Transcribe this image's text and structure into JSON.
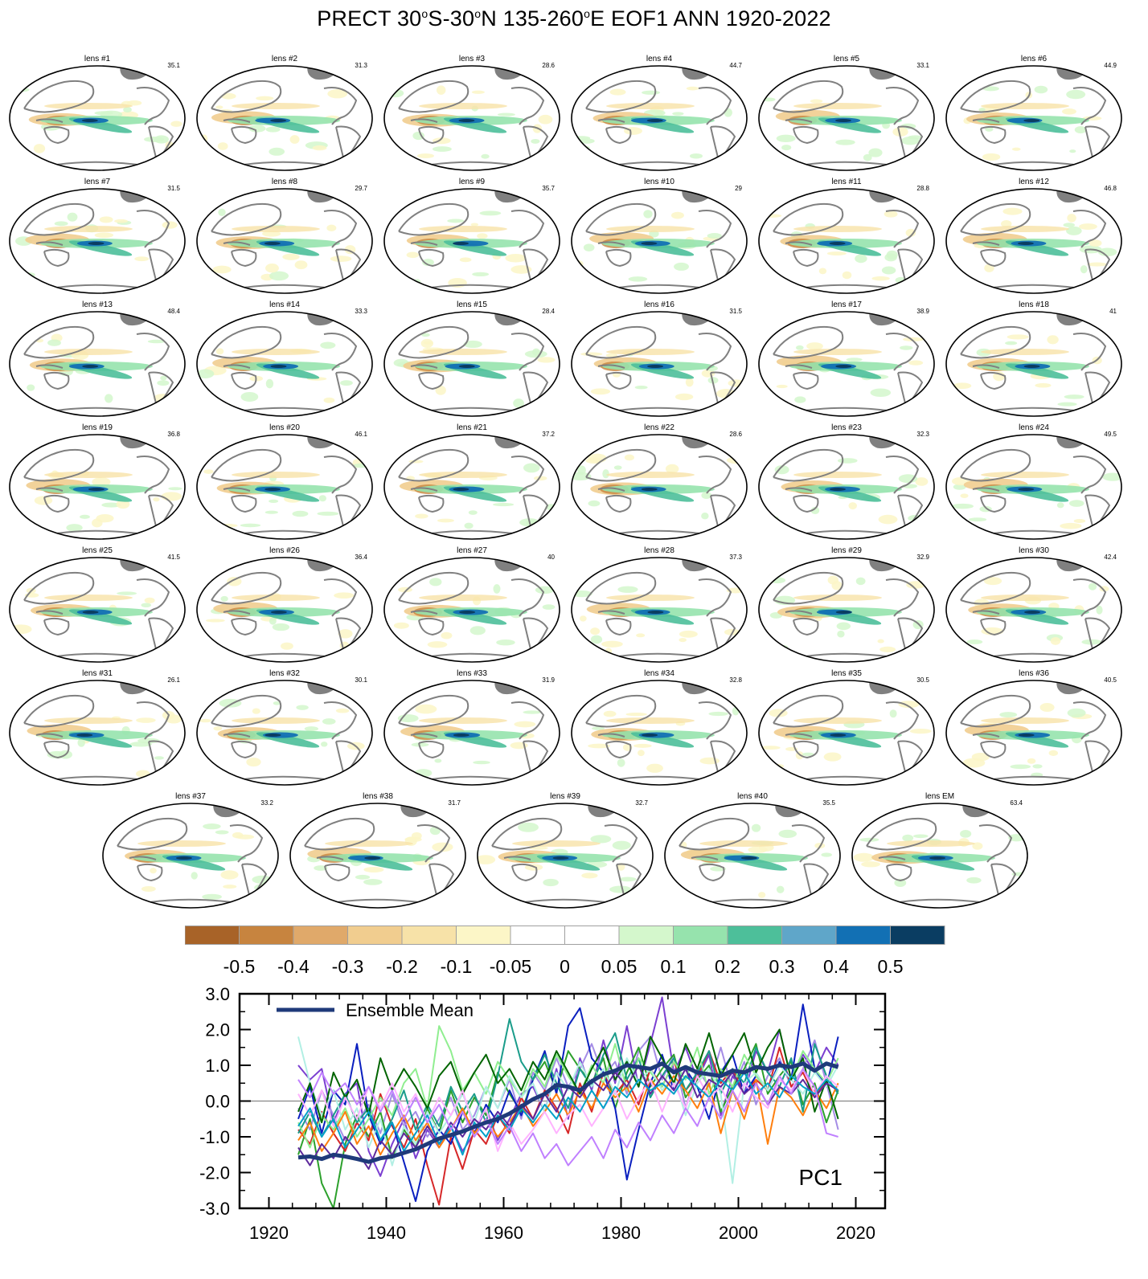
{
  "title": {
    "prefix": "PRECT 30",
    "sup1": "o",
    "mid1": "S-30",
    "sup2": "o",
    "mid2": "N 135-260",
    "sup3": "o",
    "suffix": "E EOF1 ANN 1920-2022"
  },
  "panels": [
    {
      "label": "lens #1",
      "value": "35.1"
    },
    {
      "label": "lens #2",
      "value": "31.3"
    },
    {
      "label": "lens #3",
      "value": "28.6"
    },
    {
      "label": "lens #4",
      "value": "44.7"
    },
    {
      "label": "lens #5",
      "value": "33.1"
    },
    {
      "label": "lens #6",
      "value": "44.9"
    },
    {
      "label": "lens #7",
      "value": "31.5"
    },
    {
      "label": "lens #8",
      "value": "29.7"
    },
    {
      "label": "lens #9",
      "value": "35.7"
    },
    {
      "label": "lens #10",
      "value": "29"
    },
    {
      "label": "lens #11",
      "value": "28.8"
    },
    {
      "label": "lens #12",
      "value": "46.8"
    },
    {
      "label": "lens #13",
      "value": "48.4"
    },
    {
      "label": "lens #14",
      "value": "33.3"
    },
    {
      "label": "lens #15",
      "value": "28.4"
    },
    {
      "label": "lens #16",
      "value": "31.5"
    },
    {
      "label": "lens #17",
      "value": "38.9"
    },
    {
      "label": "lens #18",
      "value": "41"
    },
    {
      "label": "lens #19",
      "value": "36.8"
    },
    {
      "label": "lens #20",
      "value": "46.1"
    },
    {
      "label": "lens #21",
      "value": "37.2"
    },
    {
      "label": "lens #22",
      "value": "28.6"
    },
    {
      "label": "lens #23",
      "value": "32.3"
    },
    {
      "label": "lens #24",
      "value": "49.5"
    },
    {
      "label": "lens #25",
      "value": "41.5"
    },
    {
      "label": "lens #26",
      "value": "36.4"
    },
    {
      "label": "lens #27",
      "value": "40"
    },
    {
      "label": "lens #28",
      "value": "37.3"
    },
    {
      "label": "lens #29",
      "value": "32.9"
    },
    {
      "label": "lens #30",
      "value": "42.4"
    },
    {
      "label": "lens #31",
      "value": "26.1"
    },
    {
      "label": "lens #32",
      "value": "30.1"
    },
    {
      "label": "lens #33",
      "value": "31.9"
    },
    {
      "label": "lens #34",
      "value": "32.8"
    },
    {
      "label": "lens #35",
      "value": "30.5"
    },
    {
      "label": "lens #36",
      "value": "40.5"
    },
    {
      "label": "lens #37",
      "value": "33.2"
    },
    {
      "label": "lens #38",
      "value": "31.7"
    },
    {
      "label": "lens #39",
      "value": "32.7"
    },
    {
      "label": "lens #40",
      "value": "35.5"
    },
    {
      "label": "lens EM",
      "value": "63.4"
    }
  ],
  "colors": {
    "land": "#808080",
    "zero_line": "#888888",
    "ensemble_mean": "#1f3a7a"
  },
  "colorbar": {
    "colors": [
      "#a86328",
      "#c7843f",
      "#e0a96a",
      "#f1cd8f",
      "#f7e2a8",
      "#fcf6c7",
      "#ffffff",
      "#ffffff",
      "#d4f7cc",
      "#96e3ad",
      "#4dbf9a",
      "#5fa6c9",
      "#1270b4",
      "#0a3d62"
    ],
    "labels": [
      "-0.5",
      "-0.4",
      "-0.3",
      "-0.2",
      "-0.1",
      "-0.05",
      "0",
      "0.05",
      "0.1",
      "0.2",
      "0.3",
      "0.4",
      "0.5"
    ]
  },
  "chart_data": {
    "type": "line",
    "title": "",
    "annotation": "PC1",
    "legend": {
      "entries": [
        "Ensemble Mean"
      ],
      "placement": "top-left"
    },
    "xlim": [
      1915,
      2025
    ],
    "ylim": [
      -3.0,
      3.0
    ],
    "xticks": [
      "1920",
      "1940",
      "1960",
      "1980",
      "2000",
      "2020"
    ],
    "yticks": [
      "3.0",
      "2.0",
      "1.0",
      "0.0",
      "-1.0",
      "-2.0",
      "-3.0"
    ],
    "xlabel": "",
    "ylabel": "",
    "grid": false,
    "x": [
      1925,
      1927,
      1929,
      1931,
      1933,
      1935,
      1937,
      1939,
      1941,
      1943,
      1945,
      1947,
      1949,
      1951,
      1953,
      1955,
      1957,
      1959,
      1961,
      1963,
      1965,
      1967,
      1969,
      1971,
      1973,
      1975,
      1977,
      1979,
      1981,
      1983,
      1985,
      1987,
      1989,
      1991,
      1993,
      1995,
      1997,
      1999,
      2001,
      2003,
      2005,
      2007,
      2009,
      2011,
      2013,
      2015,
      2017
    ],
    "series": [
      {
        "name": "Ensemble Mean",
        "color": "#1f3a7a",
        "width": 5,
        "values": [
          -1.58,
          -1.55,
          -1.62,
          -1.5,
          -1.55,
          -1.62,
          -1.7,
          -1.6,
          -1.55,
          -1.45,
          -1.35,
          -1.2,
          -1.05,
          -0.95,
          -0.85,
          -0.72,
          -0.6,
          -0.5,
          -0.35,
          -0.15,
          0.05,
          0.2,
          0.45,
          0.4,
          0.3,
          0.55,
          0.75,
          0.85,
          1.0,
          0.95,
          0.9,
          1.05,
          0.8,
          0.95,
          0.8,
          0.75,
          0.7,
          0.85,
          0.8,
          0.95,
          0.9,
          1.0,
          0.95,
          1.05,
          0.85,
          1.05,
          0.95
        ]
      },
      {
        "color": "#7b3fd1",
        "width": 2,
        "values": [
          1.0,
          0.6,
          0.9,
          -0.6,
          0.2,
          0.5,
          -1.4,
          -2.1,
          -1.2,
          -0.5,
          -1.6,
          -0.8,
          -1.3,
          -0.7,
          -1.4,
          -0.9,
          -0.2,
          -1.1,
          -0.5,
          0.2,
          0.4,
          -0.3,
          0.9,
          -0.5,
          1.2,
          0.3,
          1.7,
          0.5,
          2.1,
          0.4,
          1.6,
          2.9,
          0.8,
          1.5,
          0.6,
          1.3,
          -0.4,
          0.7,
          0.2,
          1.4,
          0.8,
          2.0,
          0.6,
          1.3,
          0.8,
          1.5,
          1.0
        ]
      },
      {
        "color": "#a58de6",
        "width": 2,
        "values": [
          -0.2,
          -0.8,
          0.3,
          -0.4,
          -1.1,
          -0.6,
          -0.1,
          -0.9,
          0.2,
          -0.7,
          -0.3,
          -1.0,
          -0.5,
          0.1,
          -0.8,
          -0.4,
          0.4,
          -0.2,
          0.6,
          -0.5,
          0.8,
          0.3,
          1.2,
          0.4,
          0.9,
          1.6,
          0.7,
          1.1,
          0.2,
          1.4,
          1.8,
          0.6,
          1.3,
          -0.2,
          0.9,
          0.4,
          1.5,
          0.3,
          1.1,
          -0.1,
          0.7,
          1.2,
          0.4,
          0.9,
          1.7,
          0.5,
          -0.8
        ]
      },
      {
        "color": "#2ca02c",
        "width": 2,
        "values": [
          -1.5,
          -0.5,
          -2.3,
          -3.0,
          -1.2,
          -0.4,
          -1.0,
          -0.3,
          -1.6,
          -0.8,
          -1.3,
          -0.2,
          -0.9,
          0.3,
          -0.6,
          0.1,
          -0.4,
          0.8,
          0.2,
          -0.3,
          0.6,
          1.1,
          0.3,
          1.4,
          0.9,
          0.5,
          1.2,
          -0.2,
          0.8,
          1.5,
          0.4,
          0.9,
          1.3,
          0.1,
          0.6,
          1.0,
          -0.3,
          0.4,
          0.9,
          1.6,
          0.2,
          0.7,
          1.1,
          -0.1,
          0.5,
          -0.6,
          0.3
        ]
      },
      {
        "color": "#d62728",
        "width": 2,
        "values": [
          -0.8,
          -1.2,
          -0.3,
          -0.9,
          -1.4,
          -0.6,
          -1.1,
          0.2,
          -0.7,
          -1.3,
          -0.5,
          -1.8,
          -2.9,
          -1.0,
          -1.9,
          -0.8,
          -1.2,
          -0.4,
          -0.9,
          0.1,
          -0.5,
          0.3,
          -0.2,
          -0.9,
          0.5,
          -0.3,
          0.8,
          0.2,
          0.6,
          -0.1,
          0.9,
          0.4,
          1.1,
          0.3,
          0.7,
          1.4,
          0.5,
          0.9,
          0.2,
          0.6,
          0.3,
          1.5,
          0.4,
          0.8,
          0.1,
          0.6,
          0.3
        ]
      },
      {
        "color": "#0a1fbf",
        "width": 2,
        "values": [
          -0.5,
          0.4,
          -0.9,
          0.3,
          -0.1,
          1.6,
          -0.4,
          -1.2,
          -0.6,
          -1.7,
          -2.8,
          -1.4,
          -0.8,
          -1.2,
          -0.3,
          -0.9,
          -0.1,
          -0.6,
          0.3,
          -0.4,
          0.6,
          1.4,
          0.2,
          2.1,
          2.6,
          1.2,
          0.8,
          -0.2,
          -2.2,
          -0.8,
          0.5,
          1.3,
          0.3,
          0.9,
          0.4,
          -0.5,
          0.8,
          1.3,
          0.2,
          0.7,
          0.3,
          1.1,
          0.6,
          2.7,
          0.9,
          0.4,
          1.8
        ]
      },
      {
        "color": "#1a9c8a",
        "width": 2,
        "values": [
          -0.9,
          -0.3,
          -1.0,
          -0.4,
          0.2,
          -0.6,
          -0.2,
          -1.1,
          -0.5,
          0.3,
          -0.8,
          -0.1,
          -0.7,
          0.4,
          -0.3,
          0.2,
          -0.6,
          0.7,
          2.3,
          1.1,
          0.6,
          1.3,
          0.5,
          -0.2,
          0.9,
          0.4,
          1.3,
          1.9,
          0.6,
          1.2,
          0.1,
          0.7,
          1.2,
          0.3,
          0.8,
          1.4,
          0.2,
          0.9,
          0.5,
          1.5,
          0.8,
          0.4,
          1.2,
          -0.3,
          1.6,
          0.7,
          0.2
        ]
      },
      {
        "color": "#90ee90",
        "width": 2,
        "values": [
          -0.6,
          -1.3,
          -0.4,
          -0.8,
          -0.2,
          -1.0,
          -0.5,
          0.1,
          -0.4,
          0.5,
          0.9,
          -0.2,
          2.1,
          1.4,
          0.3,
          0.8,
          0.2,
          1.1,
          0.6,
          0.1,
          0.9,
          0.4,
          1.3,
          0.7,
          0.2,
          1.0,
          0.5,
          1.6,
          0.3,
          1.2,
          0.8,
          0.4,
          1.1,
          0.6,
          1.5,
          0.2,
          0.9,
          0.4,
          1.3,
          0.7,
          0.3,
          1.0,
          0.6,
          1.4,
          0.9,
          0.5,
          1.2
        ]
      },
      {
        "color": "#b2efe4",
        "width": 2,
        "values": [
          1.8,
          0.5,
          -0.4,
          0.3,
          -0.8,
          -0.2,
          -1.3,
          -0.5,
          -1.8,
          -0.7,
          -1.2,
          -0.3,
          -0.9,
          -0.4,
          0.2,
          -0.6,
          0.4,
          -0.2,
          0.7,
          0.1,
          0.5,
          -0.3,
          0.8,
          0.3,
          1.1,
          0.4,
          0.9,
          0.2,
          1.2,
          0.5,
          0.9,
          0.3,
          0.7,
          -0.4,
          0.5,
          0.9,
          0.2,
          -2.3,
          0.5,
          0.8,
          0.3,
          1.0,
          0.6,
          0.2,
          0.8,
          0.4,
          1.0
        ]
      },
      {
        "color": "#ff7f0e",
        "width": 2,
        "values": [
          -1.1,
          -0.6,
          -1.4,
          -0.9,
          -0.3,
          -1.2,
          -0.7,
          -1.5,
          -0.9,
          -0.4,
          -1.1,
          -0.6,
          -1.3,
          -0.8,
          -0.2,
          -0.9,
          -0.5,
          -1.0,
          -0.6,
          -0.1,
          -0.7,
          -0.3,
          0.2,
          -0.4,
          0.3,
          -0.2,
          0.5,
          0.1,
          0.4,
          -0.3,
          0.6,
          0.2,
          0.7,
          0.3,
          -0.2,
          0.5,
          -0.9,
          0.3,
          -0.5,
          0.6,
          -1.2,
          0.4,
          0.1,
          -0.4,
          0.3,
          -0.2,
          0.5
        ]
      },
      {
        "color": "#006400",
        "width": 2,
        "values": [
          -0.3,
          0.5,
          -0.6,
          0.8,
          0.1,
          0.6,
          -0.4,
          1.2,
          0.3,
          0.9,
          0.4,
          -0.2,
          0.7,
          1.1,
          0.2,
          0.8,
          1.3,
          0.5,
          0.9,
          0.3,
          1.1,
          0.6,
          1.4,
          0.8,
          0.2,
          0.9,
          1.5,
          0.6,
          1.1,
          0.4,
          1.8,
          1.2,
          0.5,
          1.6,
          0.9,
          1.9,
          0.7,
          1.3,
          1.9,
          0.8,
          1.5,
          2.0,
          0.6,
          1.2,
          -0.3,
          0.6,
          -0.5
        ]
      },
      {
        "color": "#ffb3ff",
        "width": 2,
        "values": [
          0.2,
          -0.4,
          0.3,
          -0.7,
          0.1,
          -0.5,
          0.4,
          -0.2,
          0.5,
          -0.3,
          0.2,
          -0.6,
          0.1,
          -0.4,
          0.3,
          -0.8,
          -0.2,
          -1.4,
          -0.6,
          -1.2,
          -0.8,
          -0.3,
          -0.9,
          -0.4,
          -0.1,
          -0.7,
          -0.2,
          0.3,
          -0.5,
          0.1,
          0.6,
          -0.3,
          0.5,
          -0.2,
          0.7,
          0.1,
          0.4,
          -0.3,
          0.5,
          0.1,
          -0.2,
          0.6,
          0.3,
          0.9,
          0.2,
          0.7,
          0.4
        ]
      },
      {
        "color": "#5e2a9c",
        "width": 2,
        "values": [
          -1.3,
          -1.8,
          -1.2,
          -1.6,
          -1.0,
          -1.4,
          -1.9,
          -1.1,
          -1.5,
          -0.9,
          -1.3,
          -0.7,
          -1.2,
          -0.6,
          -1.0,
          -0.5,
          -0.8,
          -0.3,
          -0.7,
          -0.1,
          -0.5,
          0.2,
          -0.3,
          0.4,
          0.1,
          0.6,
          0.3,
          0.8,
          0.4,
          1.0,
          0.2,
          0.7,
          0.3,
          0.9,
          0.1,
          0.6,
          0.4,
          0.8,
          0.2,
          0.5,
          -0.1,
          0.4,
          0.2,
          0.6,
          0.1,
          0.5,
          0.3
        ]
      },
      {
        "color": "#00a0c8",
        "width": 2,
        "values": [
          -0.7,
          -0.2,
          -1.0,
          -0.5,
          -1.3,
          -0.8,
          -0.3,
          -1.1,
          -0.6,
          -1.4,
          -0.9,
          -0.4,
          -1.2,
          -0.7,
          -1.5,
          -0.6,
          -1.0,
          -0.4,
          -0.8,
          -0.2,
          -0.6,
          -0.1,
          -0.5,
          0.1,
          -0.3,
          0.3,
          -0.2,
          0.4,
          0.1,
          0.6,
          0.3,
          0.5,
          0.2,
          0.7,
          0.4,
          0.1,
          0.6,
          0.3,
          0.8,
          0.2,
          0.5,
          0.1,
          0.7,
          0.4,
          0.2,
          0.6,
          0.3
        ]
      },
      {
        "color": "#c080ff",
        "width": 2,
        "values": [
          0.6,
          0.1,
          0.8,
          0.2,
          0.5,
          -0.1,
          0.4,
          -0.3,
          0.3,
          -0.5,
          0.1,
          -0.6,
          -0.1,
          -0.8,
          -0.3,
          -1.0,
          -0.5,
          -1.2,
          -0.7,
          -1.4,
          -0.9,
          -1.6,
          -1.2,
          -1.8,
          -1.4,
          -1.0,
          -1.6,
          -0.8,
          -1.3,
          -0.6,
          -1.1,
          -0.4,
          -0.9,
          -0.2,
          -0.7,
          0.1,
          -0.5,
          0.3,
          -0.3,
          0.5,
          -0.1,
          0.7,
          0.2,
          0.9,
          0.4,
          -0.9,
          -1.0
        ]
      }
    ]
  }
}
